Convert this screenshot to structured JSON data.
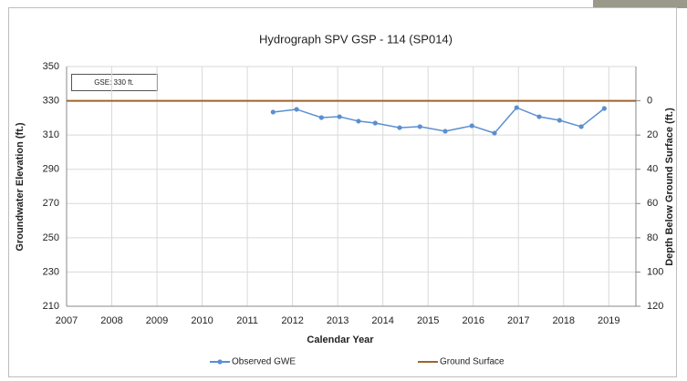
{
  "chart_data": {
    "type": "line",
    "title": "Hydrograph SPV GSP - 114 (SP014)",
    "x_label": "Calendar Year",
    "y_label": "Groundwater Elevation (ft.)",
    "y2_label": "Depth Below Ground Surface (ft.)",
    "annotation": "GSE:  330 ft.",
    "xlim": [
      2007,
      2019.6
    ],
    "xticks": [
      2007,
      2008,
      2009,
      2010,
      2011,
      2012,
      2013,
      2014,
      2015,
      2016,
      2017,
      2018,
      2019
    ],
    "ylim": [
      210,
      350
    ],
    "yticks": [
      210,
      230,
      250,
      270,
      290,
      310,
      330,
      350
    ],
    "y2lim": [
      120,
      -20
    ],
    "y2ticks": [
      0,
      20,
      40,
      60,
      80,
      100,
      120
    ],
    "grid": true,
    "legend": "bottom",
    "series": [
      {
        "name": "Observed GWE",
        "color": "#5b8fd0",
        "marker": true,
        "x": [
          2011.57,
          2012.09,
          2012.64,
          2013.04,
          2013.46,
          2013.83,
          2014.37,
          2014.82,
          2015.38,
          2015.97,
          2016.47,
          2016.96,
          2017.46,
          2017.91,
          2018.39,
          2018.9
        ],
        "values": [
          323.4,
          325.0,
          320.2,
          320.7,
          318.1,
          317.0,
          314.3,
          314.9,
          312.2,
          315.4,
          311.1,
          326.0,
          320.7,
          318.6,
          314.9,
          325.5
        ]
      },
      {
        "name": "Ground Surface",
        "color": "#a0642b",
        "marker": false,
        "x": [
          2007,
          2019.6
        ],
        "values": [
          330,
          330
        ]
      }
    ]
  }
}
